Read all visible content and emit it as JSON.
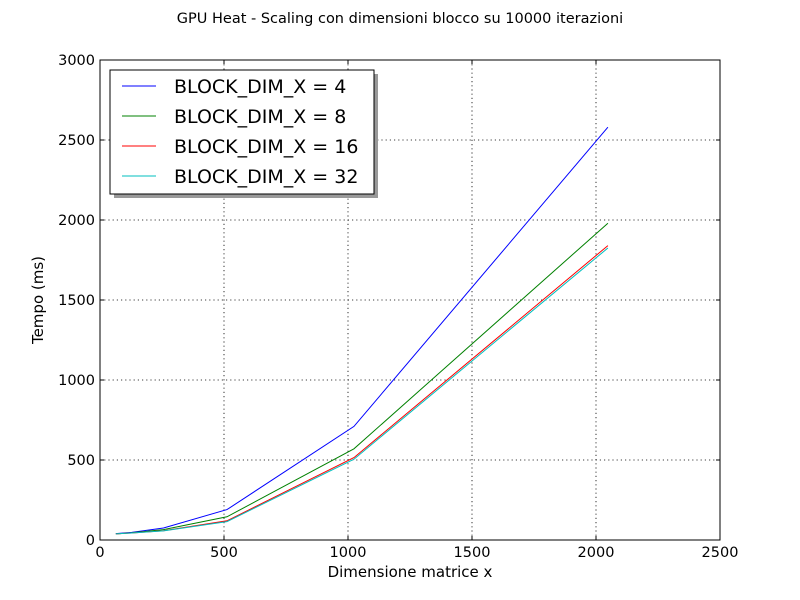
{
  "chart_data": {
    "type": "line",
    "title": "GPU Heat - Scaling con dimensioni blocco su 10000 iterazioni",
    "xlabel": "Dimensione matrice x",
    "ylabel": "Tempo (ms)",
    "xlim": [
      0,
      2500
    ],
    "ylim": [
      0,
      3000
    ],
    "xticks": [
      "0",
      "500",
      "1000",
      "1500",
      "2000",
      "2500"
    ],
    "yticks": [
      "0",
      "500",
      "1000",
      "1500",
      "2000",
      "2500",
      "3000"
    ],
    "grid": true,
    "legend_position": "top-left",
    "x": [
      64,
      128,
      256,
      512,
      1024,
      2048
    ],
    "series": [
      {
        "name": "BLOCK_DIM_X = 4",
        "color": "#0000ff",
        "values": [
          40,
          48,
          75,
          190,
          710,
          2580
        ]
      },
      {
        "name": "BLOCK_DIM_X = 8",
        "color": "#008000",
        "values": [
          38,
          45,
          65,
          145,
          570,
          1980
        ]
      },
      {
        "name": "BLOCK_DIM_X = 16",
        "color": "#ff0000",
        "values": [
          38,
          44,
          58,
          120,
          515,
          1840
        ]
      },
      {
        "name": "BLOCK_DIM_X = 32",
        "color": "#00bfbf",
        "values": [
          38,
          44,
          57,
          115,
          505,
          1825
        ]
      }
    ]
  }
}
